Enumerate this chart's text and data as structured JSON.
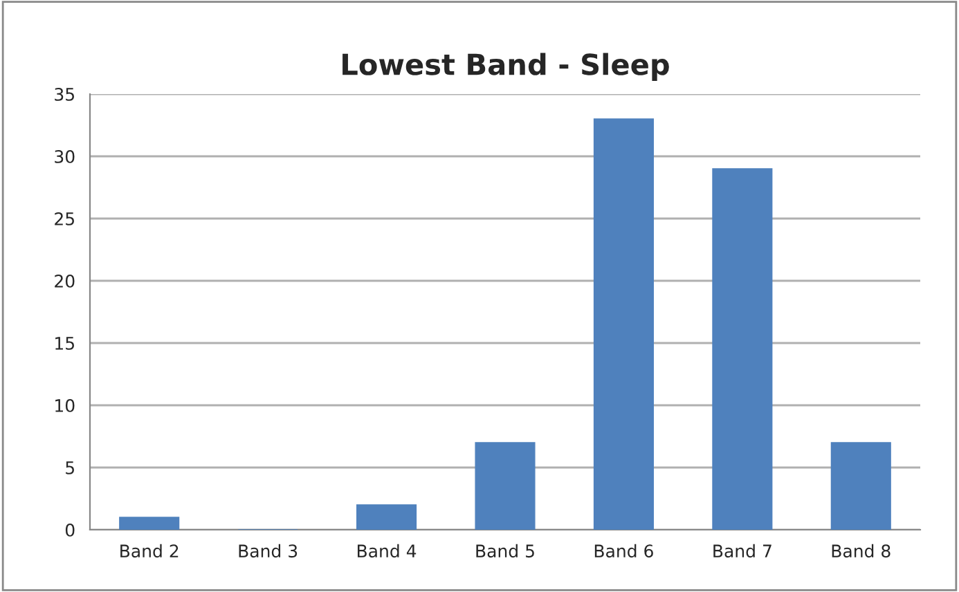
{
  "chart_data": {
    "type": "bar",
    "title": "Lowest Band - Sleep",
    "categories": [
      "Band 2",
      "Band 3",
      "Band 4",
      "Band 5",
      "Band 6",
      "Band 7",
      "Band 8"
    ],
    "values": [
      1,
      0,
      2,
      7,
      33,
      29,
      7
    ],
    "color": "#4f81bd",
    "ylim": [
      0,
      35
    ],
    "yticks": [
      0,
      5,
      10,
      15,
      20,
      25,
      30,
      35
    ],
    "grid": "y",
    "legend": false
  }
}
